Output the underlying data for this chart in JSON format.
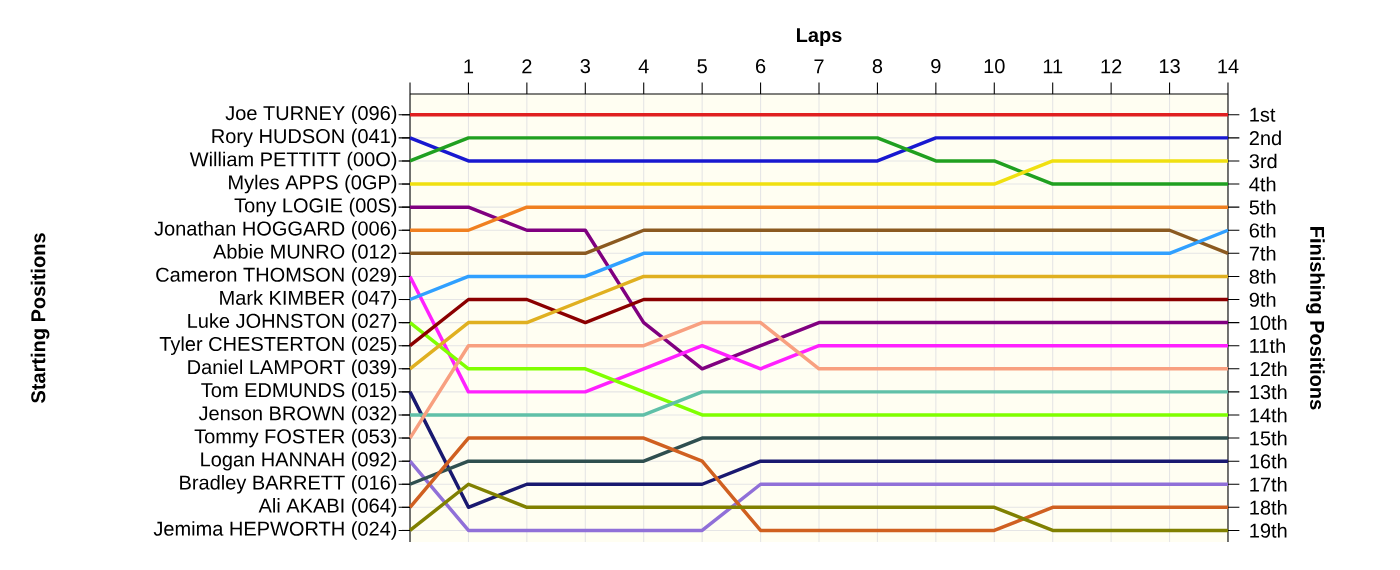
{
  "chart_data": {
    "type": "line",
    "xlabel": "Laps",
    "annotations": [
      "Starting Positions"
    ],
    "ylabel": "Finishing Positions",
    "x": [
      0,
      1,
      2,
      3,
      4,
      5,
      6,
      7,
      8,
      9,
      10,
      11,
      12,
      13,
      14
    ],
    "xlim": [
      0,
      14
    ],
    "xticks": [
      {
        "value": 0,
        "label": null
      },
      1,
      2,
      3,
      4,
      5,
      6,
      7,
      8,
      9,
      10,
      11,
      12,
      13,
      14
    ],
    "ylim": [
      19.5,
      0.1
    ],
    "yticks": [
      {
        "value": 1,
        "label": "1st"
      },
      {
        "value": 2,
        "label": "2nd"
      },
      {
        "value": 3,
        "label": "3rd"
      },
      {
        "value": 4,
        "label": "4th"
      },
      {
        "value": 5,
        "label": "5th"
      },
      {
        "value": 6,
        "label": "6th"
      },
      {
        "value": 7,
        "label": "7th"
      },
      {
        "value": 8,
        "label": "8th"
      },
      {
        "value": 9,
        "label": "9th"
      },
      {
        "value": 10,
        "label": "10th"
      },
      {
        "value": 11,
        "label": "11th"
      },
      {
        "value": 12,
        "label": "12th"
      },
      {
        "value": 13,
        "label": "13th"
      },
      {
        "value": 14,
        "label": "14th"
      },
      {
        "value": 15,
        "label": "15th"
      },
      {
        "value": 16,
        "label": "16th"
      },
      {
        "value": 17,
        "label": "17th"
      },
      {
        "value": 18,
        "label": "18th"
      },
      {
        "value": 19,
        "label": "19th"
      }
    ],
    "grid": true,
    "marker": "none",
    "line_style": "solid",
    "series": [
      {
        "name": "Joe TURNEY (096)",
        "color": "#e02020",
        "values": [
          1,
          1,
          1,
          1,
          1,
          1,
          1,
          1,
          1,
          1,
          1,
          1,
          1,
          1,
          1
        ]
      },
      {
        "name": "Rory HUDSON (041)",
        "color": "#1818d0",
        "values": [
          2,
          3,
          3,
          3,
          3,
          3,
          3,
          3,
          3,
          2,
          2,
          2,
          2,
          2,
          2
        ]
      },
      {
        "name": "William PETTITT (00O)",
        "color": "#20a020",
        "values": [
          3,
          2,
          2,
          2,
          2,
          2,
          2,
          2,
          2,
          3,
          3,
          4,
          4,
          4,
          4
        ]
      },
      {
        "name": "Myles APPS (0GP)",
        "color": "#f0e010",
        "values": [
          4,
          4,
          4,
          4,
          4,
          4,
          4,
          4,
          4,
          4,
          4,
          3,
          3,
          3,
          3
        ]
      },
      {
        "name": "Tony LOGIE (00S)",
        "color": "#800080",
        "values": [
          5,
          5,
          6,
          6,
          10,
          12,
          11,
          10,
          10,
          10,
          10,
          10,
          10,
          10,
          10
        ]
      },
      {
        "name": "Jonathan HOGGARD (006)",
        "color": "#f08020",
        "values": [
          6,
          6,
          5,
          5,
          5,
          5,
          5,
          5,
          5,
          5,
          5,
          5,
          5,
          5,
          5
        ]
      },
      {
        "name": "Abbie MUNRO (012)",
        "color": "#8b5a20",
        "values": [
          7,
          7,
          7,
          7,
          6,
          6,
          6,
          6,
          6,
          6,
          6,
          6,
          6,
          6,
          7
        ]
      },
      {
        "name": "Cameron THOMSON (029)",
        "color": "#ff20ff",
        "values": [
          8,
          13,
          13,
          13,
          12,
          11,
          12,
          11,
          11,
          11,
          11,
          11,
          11,
          11,
          11
        ]
      },
      {
        "name": "Mark KIMBER (047)",
        "color": "#30a0ff",
        "values": [
          9,
          8,
          8,
          8,
          7,
          7,
          7,
          7,
          7,
          7,
          7,
          7,
          7,
          7,
          6
        ]
      },
      {
        "name": "Luke JOHNSTON (027)",
        "color": "#80ff00",
        "values": [
          10,
          12,
          12,
          12,
          13,
          14,
          14,
          14,
          14,
          14,
          14,
          14,
          14,
          14,
          14
        ]
      },
      {
        "name": "Tyler CHESTERTON (025)",
        "color": "#8b0000",
        "values": [
          11,
          9,
          9,
          10,
          9,
          9,
          9,
          9,
          9,
          9,
          9,
          9,
          9,
          9,
          9
        ]
      },
      {
        "name": "Daniel LAMPORT (039)",
        "color": "#e0b020",
        "values": [
          12,
          10,
          10,
          9,
          8,
          8,
          8,
          8,
          8,
          8,
          8,
          8,
          8,
          8,
          8
        ]
      },
      {
        "name": "Tom EDMUNDS (015)",
        "color": "#191970",
        "values": [
          13,
          18,
          17,
          17,
          17,
          17,
          16,
          16,
          16,
          16,
          16,
          16,
          16,
          16,
          16
        ]
      },
      {
        "name": "Jenson BROWN (032)",
        "color": "#60c0a8",
        "values": [
          14,
          14,
          14,
          14,
          14,
          13,
          13,
          13,
          13,
          13,
          13,
          13,
          13,
          13,
          13
        ]
      },
      {
        "name": "Tommy FOSTER (053)",
        "color": "#f8a080",
        "values": [
          15,
          11,
          11,
          11,
          11,
          10,
          10,
          12,
          12,
          12,
          12,
          12,
          12,
          12,
          12
        ]
      },
      {
        "name": "Logan HANNAH (092)",
        "color": "#9070d8",
        "values": [
          16,
          19,
          19,
          19,
          19,
          19,
          17,
          17,
          17,
          17,
          17,
          17,
          17,
          17,
          17
        ]
      },
      {
        "name": "Bradley BARRETT (016)",
        "color": "#2f4f4f",
        "values": [
          17,
          16,
          16,
          16,
          16,
          15,
          15,
          15,
          15,
          15,
          15,
          15,
          15,
          15,
          15
        ]
      },
      {
        "name": "Ali AKABI (064)",
        "color": "#d06020",
        "values": [
          18,
          15,
          15,
          15,
          15,
          16,
          19,
          19,
          19,
          19,
          19,
          18,
          18,
          18,
          18
        ]
      },
      {
        "name": "Jemima HEPWORTH (024)",
        "color": "#808000",
        "values": [
          19,
          17,
          18,
          18,
          18,
          18,
          18,
          18,
          18,
          18,
          18,
          19,
          19,
          19,
          19
        ]
      }
    ]
  }
}
